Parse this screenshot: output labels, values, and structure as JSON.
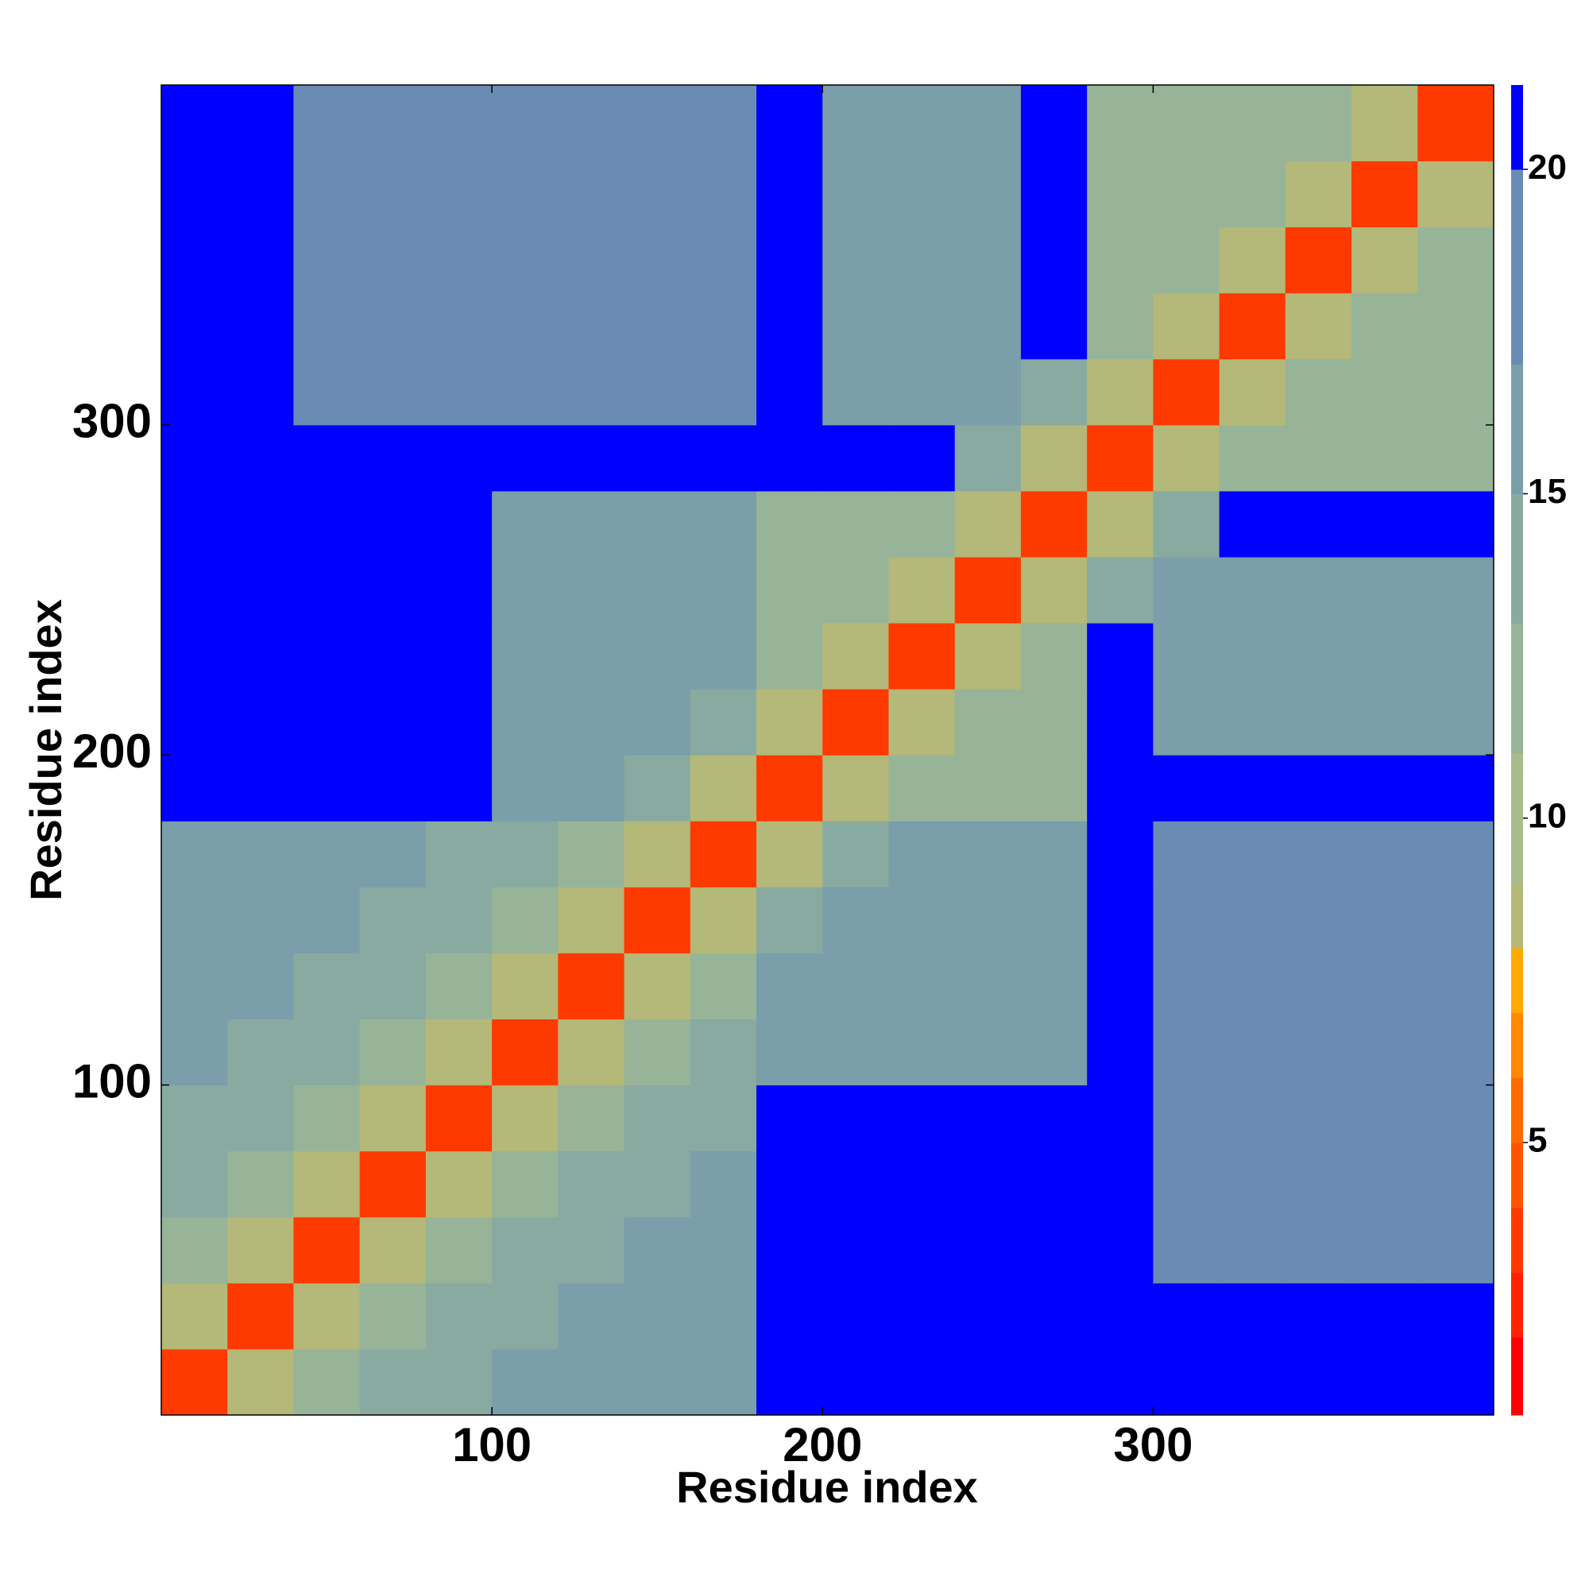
{
  "chart_data": {
    "type": "heatmap",
    "x_label": "Residue index",
    "y_label": "Residue index",
    "xlim": [
      0,
      403
    ],
    "ylim": [
      0,
      403
    ],
    "xticks": [
      100,
      200,
      300
    ],
    "yticks": [
      100,
      200,
      300
    ],
    "bins": [
      0,
      20,
      40,
      60,
      80,
      100,
      120,
      140,
      160,
      180,
      200,
      220,
      240,
      260,
      280,
      300,
      320,
      340,
      360,
      380,
      403
    ],
    "z": [
      [
        4,
        9,
        13,
        15,
        15,
        16,
        16,
        16,
        16,
        21,
        21,
        21,
        21,
        21,
        21,
        21,
        21,
        21,
        21,
        21
      ],
      [
        9,
        4,
        9,
        13,
        15,
        15,
        16,
        16,
        16,
        21,
        21,
        21,
        21,
        21,
        21,
        21,
        21,
        21,
        21,
        21
      ],
      [
        13,
        9,
        4,
        9,
        13,
        15,
        15,
        16,
        16,
        21,
        21,
        21,
        21,
        21,
        21,
        18,
        18,
        18,
        18,
        18
      ],
      [
        15,
        13,
        9,
        4,
        9,
        13,
        15,
        15,
        16,
        21,
        21,
        21,
        21,
        21,
        21,
        18,
        18,
        18,
        18,
        18
      ],
      [
        15,
        15,
        13,
        9,
        4,
        9,
        13,
        15,
        15,
        21,
        21,
        21,
        21,
        21,
        21,
        18,
        18,
        18,
        18,
        18
      ],
      [
        16,
        15,
        15,
        13,
        9,
        4,
        9,
        13,
        15,
        17,
        17,
        17,
        17,
        17,
        21,
        18,
        18,
        18,
        18,
        18
      ],
      [
        16,
        16,
        15,
        15,
        13,
        9,
        4,
        9,
        13,
        17,
        17,
        17,
        17,
        17,
        21,
        18,
        18,
        18,
        18,
        18
      ],
      [
        16,
        16,
        16,
        15,
        15,
        13,
        9,
        4,
        9,
        15,
        17,
        17,
        17,
        17,
        21,
        18,
        18,
        18,
        18,
        18
      ],
      [
        16,
        16,
        16,
        16,
        15,
        15,
        13,
        9,
        4,
        9,
        15,
        17,
        17,
        17,
        21,
        18,
        18,
        18,
        18,
        18
      ],
      [
        21,
        21,
        21,
        21,
        21,
        17,
        17,
        15,
        9,
        4,
        9,
        13,
        13,
        13,
        21,
        21,
        21,
        21,
        21,
        21
      ],
      [
        21,
        21,
        21,
        21,
        21,
        17,
        17,
        17,
        15,
        9,
        4,
        9,
        13,
        13,
        21,
        17,
        17,
        17,
        17,
        17
      ],
      [
        21,
        21,
        21,
        21,
        21,
        17,
        17,
        17,
        17,
        13,
        9,
        4,
        9,
        13,
        21,
        17,
        17,
        17,
        17,
        17
      ],
      [
        21,
        21,
        21,
        21,
        21,
        17,
        17,
        17,
        17,
        13,
        13,
        9,
        4,
        9,
        15,
        17,
        17,
        17,
        17,
        17
      ],
      [
        21,
        21,
        21,
        21,
        21,
        17,
        17,
        17,
        17,
        13,
        13,
        13,
        9,
        4,
        9,
        15,
        21,
        21,
        21,
        21
      ],
      [
        21,
        21,
        21,
        21,
        21,
        21,
        21,
        21,
        21,
        21,
        21,
        21,
        15,
        9,
        4,
        9,
        13,
        13,
        13,
        13
      ],
      [
        21,
        21,
        18,
        18,
        18,
        18,
        18,
        18,
        18,
        21,
        17,
        17,
        17,
        15,
        9,
        4,
        9,
        13,
        13,
        13
      ],
      [
        21,
        21,
        18,
        18,
        18,
        18,
        18,
        18,
        18,
        21,
        17,
        17,
        17,
        21,
        13,
        9,
        4,
        9,
        13,
        13
      ],
      [
        21,
        21,
        18,
        18,
        18,
        18,
        18,
        18,
        18,
        21,
        17,
        17,
        17,
        21,
        13,
        13,
        9,
        4,
        9,
        13
      ],
      [
        21,
        21,
        18,
        18,
        18,
        18,
        18,
        18,
        18,
        21,
        17,
        17,
        17,
        21,
        13,
        13,
        13,
        9,
        4,
        9
      ],
      [
        21,
        21,
        18,
        18,
        18,
        18,
        18,
        18,
        18,
        21,
        17,
        17,
        17,
        21,
        13,
        13,
        13,
        13,
        9,
        4
      ]
    ],
    "levels": [
      0.8,
      2,
      3,
      4,
      5,
      6,
      7,
      8,
      9,
      11,
      13,
      15,
      17,
      20,
      21.3
    ],
    "colors": [
      "#ff0000",
      "#ff2200",
      "#ff3a00",
      "#ff5500",
      "#ff6a00",
      "#ff8800",
      "#ffaa00",
      "#b4b878",
      "#a8bc8c",
      "#98b498",
      "#88aaa0",
      "#7a9eaa",
      "#6a8cb4",
      "#0000ff"
    ],
    "cticks": [
      5,
      10,
      15,
      20
    ]
  }
}
